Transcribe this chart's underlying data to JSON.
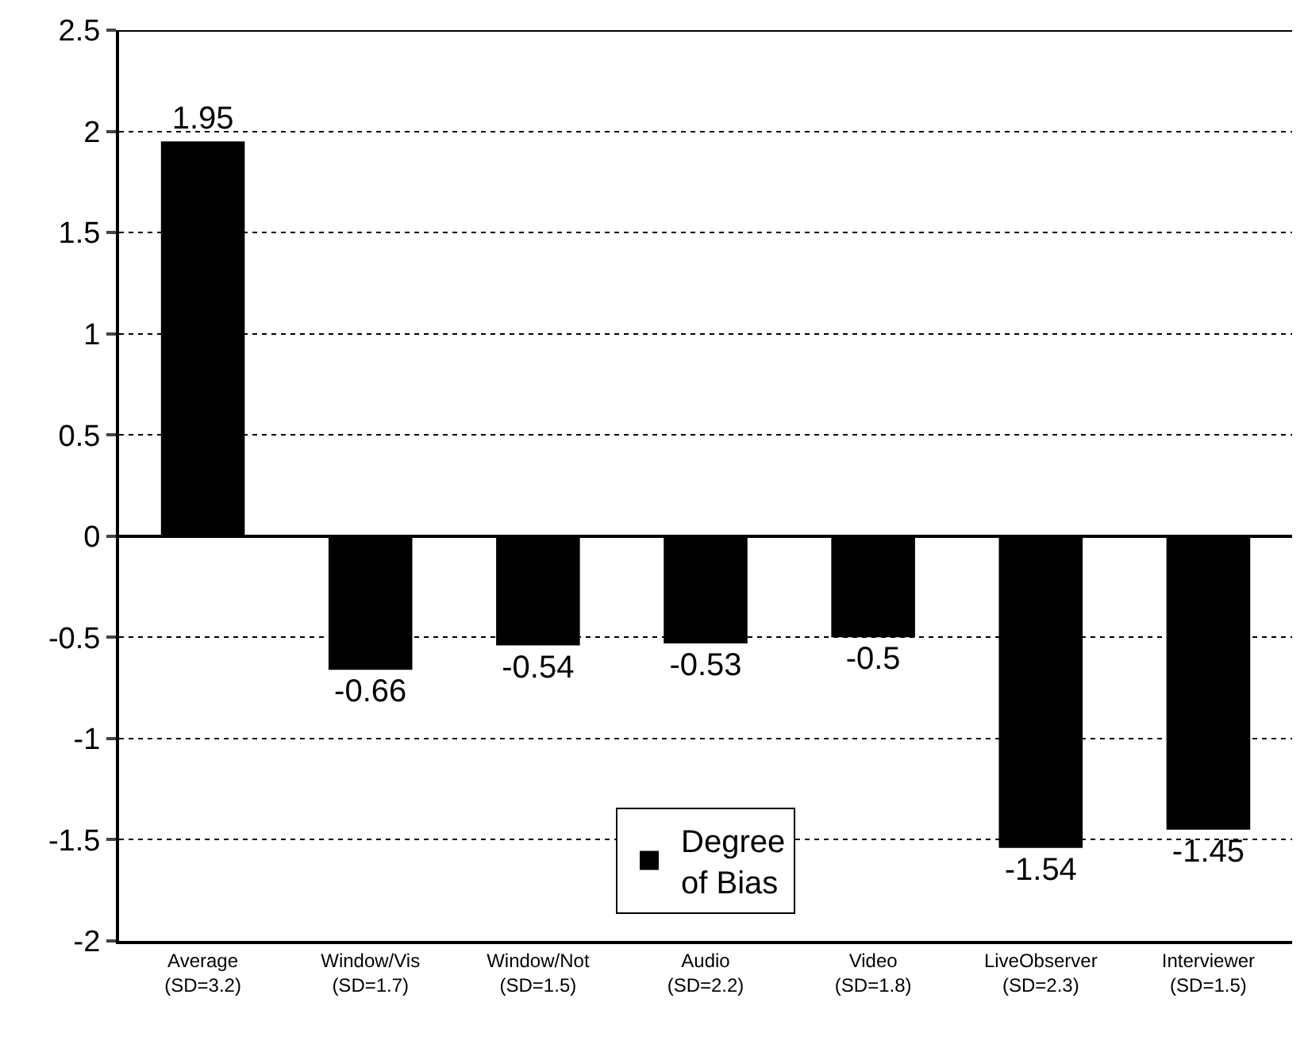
{
  "chart_data": {
    "type": "bar",
    "categories": [
      "Average\n(SD=3.2)",
      "Window/Vis\n(SD=1.7)",
      "Window/Not\n(SD=1.5)",
      "Audio\n(SD=2.2)",
      "Video\n(SD=1.8)",
      "LiveObserver\n(SD=2.3)",
      "Interviewer\n(SD=1.5)"
    ],
    "series": [
      {
        "name": "Degree\nof Bias",
        "color": "#000000",
        "values": [
          1.95,
          -0.66,
          -0.54,
          -0.53,
          -0.5,
          -1.54,
          -1.45
        ]
      }
    ],
    "ylim": [
      -2,
      2.5
    ],
    "yticks": [
      -2,
      -1.5,
      -1,
      -0.5,
      0,
      0.5,
      1,
      1.5,
      2,
      2.5
    ],
    "data_labels": true,
    "grid": "y",
    "legend": "bottom"
  }
}
